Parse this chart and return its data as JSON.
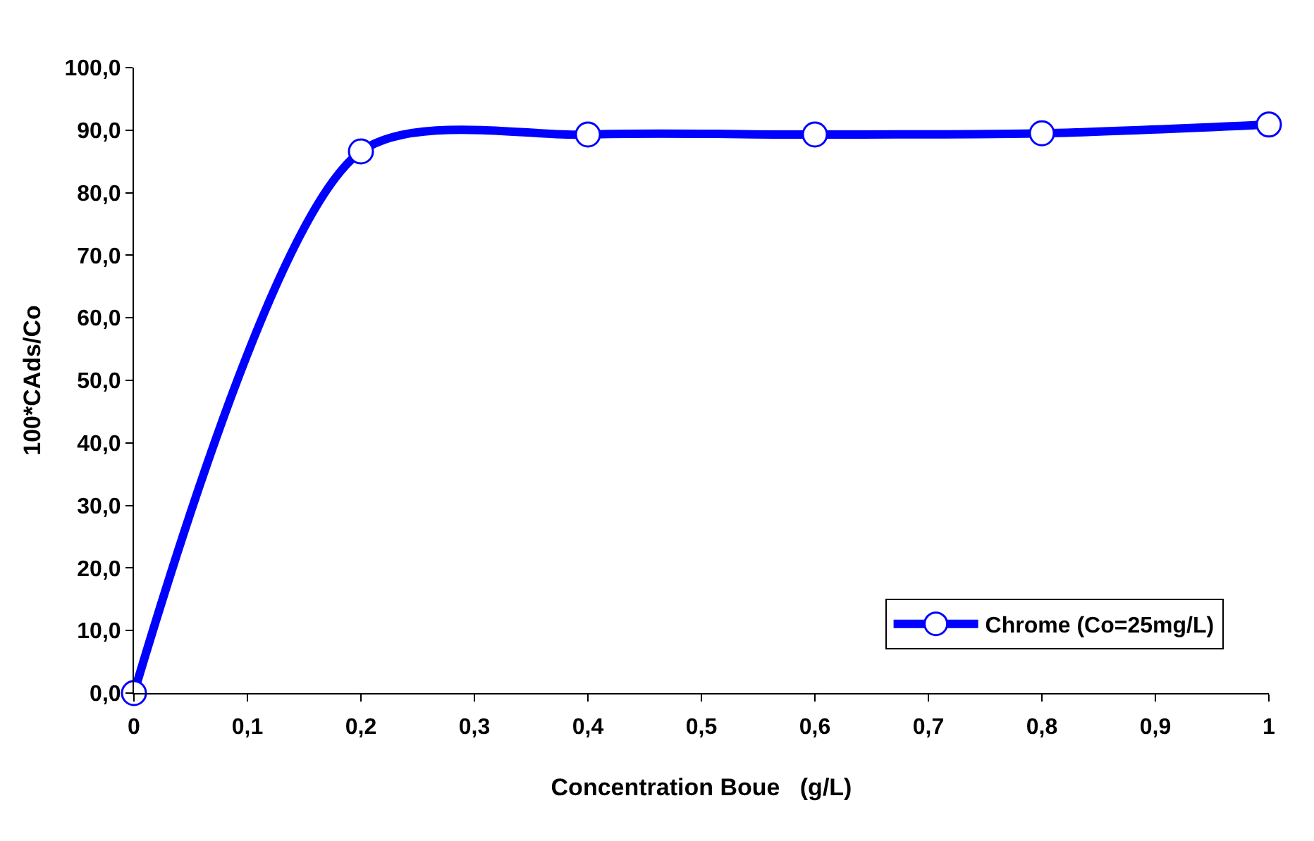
{
  "chart_data": {
    "type": "line",
    "xlabel": "Concentration Boue   (g/L)",
    "ylabel": "100*CAds/Co",
    "x": [
      0,
      0.2,
      0.4,
      0.6,
      0.8,
      1
    ],
    "series": [
      {
        "name": "Chrome (Co=25mg/L)",
        "color": "#0000ff",
        "values": [
          0,
          86.6,
          89.3,
          89.3,
          89.5,
          90.9
        ]
      }
    ],
    "xlim": [
      0,
      1
    ],
    "xticks": [
      0,
      {
        "value": 0.1,
        "label": "0,1"
      },
      {
        "value": 0.2,
        "label": "0,2"
      },
      {
        "value": 0.3,
        "label": "0,3"
      },
      {
        "value": 0.4,
        "label": "0,4"
      },
      {
        "value": 0.5,
        "label": "0,5"
      },
      {
        "value": 0.6,
        "label": "0,6"
      },
      {
        "value": 0.7,
        "label": "0,7"
      },
      {
        "value": 0.8,
        "label": "0,8"
      },
      {
        "value": 0.9,
        "label": "0,9"
      },
      1
    ],
    "ylim": [
      0,
      100
    ],
    "yticks": [
      {
        "value": 0,
        "label": "0,0"
      },
      {
        "value": 10,
        "label": "10,0"
      },
      {
        "value": 20,
        "label": "20,0"
      },
      {
        "value": 30,
        "label": "30,0"
      },
      {
        "value": 40,
        "label": "40,0"
      },
      {
        "value": 50,
        "label": "50,0"
      },
      {
        "value": 60,
        "label": "60,0"
      },
      {
        "value": 70,
        "label": "70,0"
      },
      {
        "value": 80,
        "label": "80,0"
      },
      {
        "value": 90,
        "label": "90,0"
      },
      {
        "value": 100,
        "label": "100,0"
      }
    ],
    "legend": "bottom right",
    "marker": "circle",
    "line_style": "solid"
  }
}
